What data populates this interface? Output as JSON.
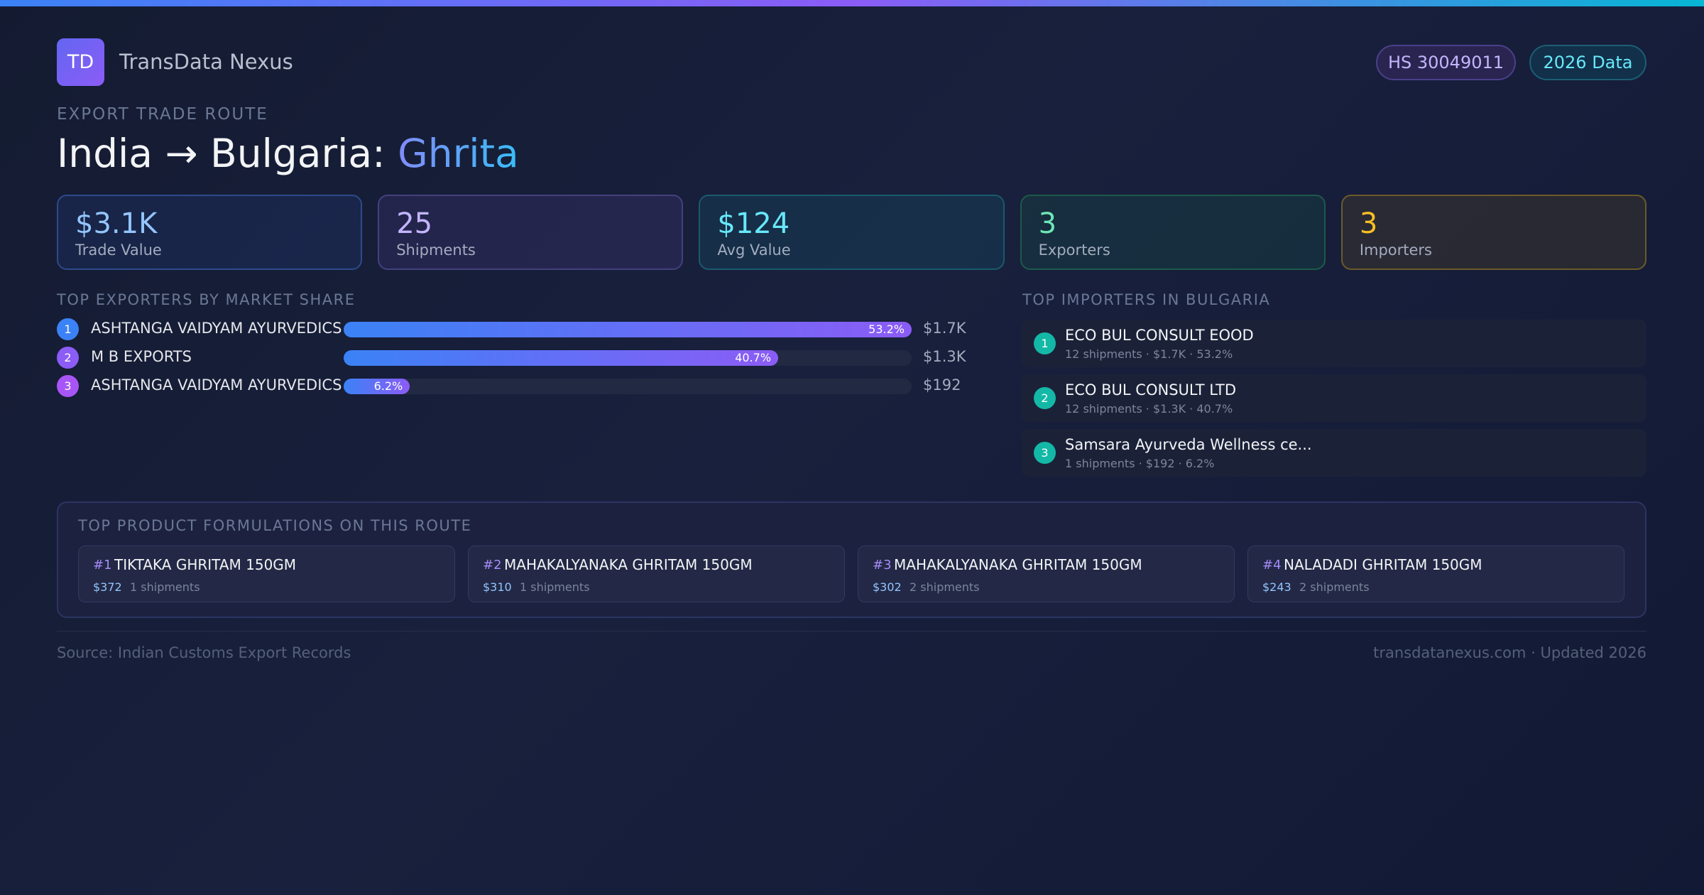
{
  "header": {
    "logo": "TD",
    "brand": "TransData Nexus",
    "badges": [
      "HS 30049011",
      "2026 Data"
    ]
  },
  "eyebrow": "EXPORT TRADE ROUTE",
  "title": {
    "route": "India → Bulgaria:",
    "product": "Ghrita"
  },
  "stats": [
    {
      "value": "$3.1K",
      "label": "Trade Value"
    },
    {
      "value": "25",
      "label": "Shipments"
    },
    {
      "value": "$124",
      "label": "Avg Value"
    },
    {
      "value": "3",
      "label": "Exporters"
    },
    {
      "value": "3",
      "label": "Importers"
    }
  ],
  "exporters": {
    "heading": "TOP EXPORTERS BY MARKET SHARE",
    "rows": [
      {
        "rank": "1",
        "name": "ASHTANGA VAIDYAM AYURVEDICS",
        "share": 53.2,
        "share_label": "53.2%",
        "value": "$1.7K"
      },
      {
        "rank": "2",
        "name": "M B EXPORTS",
        "share": 40.7,
        "share_label": "40.7%",
        "value": "$1.3K"
      },
      {
        "rank": "3",
        "name": "ASHTANGA VAIDYAM AYURVEDICS",
        "share": 6.2,
        "share_label": "6.2%",
        "value": "$192"
      }
    ]
  },
  "importers": {
    "heading": "TOP IMPORTERS IN BULGARIA",
    "rows": [
      {
        "rank": "1",
        "name": "ECO BUL CONSULT EOOD",
        "detail": "12 shipments · $1.7K · 53.2%"
      },
      {
        "rank": "2",
        "name": "ECO BUL CONSULT LTD",
        "detail": "12 shipments · $1.3K · 40.7%"
      },
      {
        "rank": "3",
        "name": "Samsara Ayurveda Wellness ce...",
        "detail": "1 shipments · $192 · 6.2%"
      }
    ]
  },
  "products": {
    "heading": "TOP PRODUCT FORMULATIONS ON THIS ROUTE",
    "items": [
      {
        "rank": "#1",
        "name": "TIKTAKA GHRITAM 150GM",
        "value": "$372",
        "shipments": "1 shipments"
      },
      {
        "rank": "#2",
        "name": "MAHAKALYANAKA GHRITAM 150GM",
        "value": "$310",
        "shipments": "1 shipments"
      },
      {
        "rank": "#3",
        "name": "MAHAKALYANAKA GHRITAM 150GM",
        "value": "$302",
        "shipments": "2 shipments"
      },
      {
        "rank": "#4",
        "name": "NALADADI GHRITAM 150GM",
        "value": "$243",
        "shipments": "2 shipments"
      }
    ]
  },
  "footer": {
    "source": "Source: Indian Customs Export Records",
    "site": "transdatanexus.com · Updated 2026"
  }
}
